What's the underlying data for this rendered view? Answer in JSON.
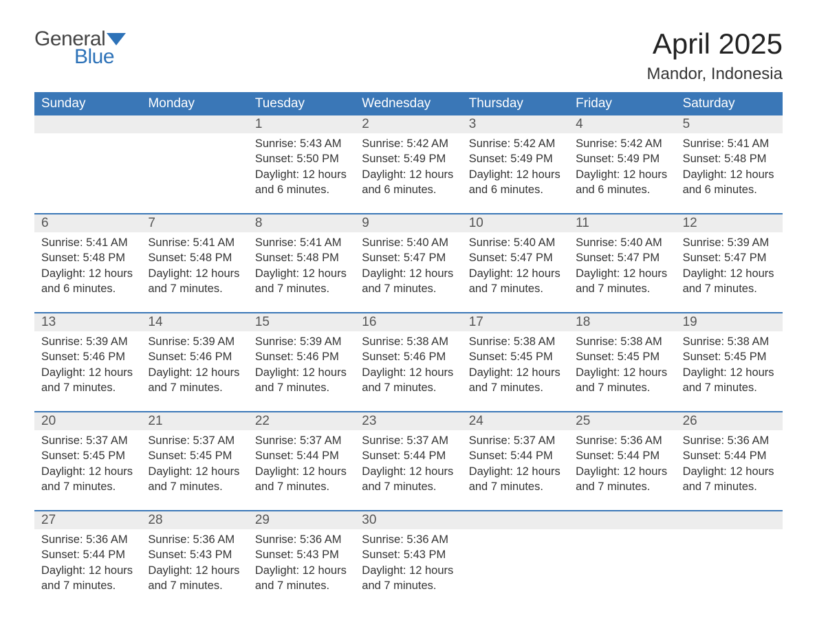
{
  "logo": {
    "text_general": "General",
    "text_blue": "Blue",
    "flag_color": "#2d72b8"
  },
  "title": "April 2025",
  "location": "Mandor, Indonesia",
  "colors": {
    "header_bg": "#3a77b7",
    "header_fg": "#ffffff",
    "daynum_bg": "#ededed",
    "body_fg": "#333333",
    "rule": "#3a77b7",
    "page_bg": "#ffffff"
  },
  "typography": {
    "title_fontsize_pt": 32,
    "location_fontsize_pt": 18,
    "header_fontsize_pt": 14,
    "body_fontsize_pt": 12
  },
  "day_names": [
    "Sunday",
    "Monday",
    "Tuesday",
    "Wednesday",
    "Thursday",
    "Friday",
    "Saturday"
  ],
  "labels": {
    "sunrise": "Sunrise:",
    "sunset": "Sunset:",
    "daylight": "Daylight:"
  },
  "weeks": [
    [
      null,
      null,
      {
        "n": "1",
        "sr": "5:43 AM",
        "ss": "5:50 PM",
        "dl": "12 hours and 6 minutes."
      },
      {
        "n": "2",
        "sr": "5:42 AM",
        "ss": "5:49 PM",
        "dl": "12 hours and 6 minutes."
      },
      {
        "n": "3",
        "sr": "5:42 AM",
        "ss": "5:49 PM",
        "dl": "12 hours and 6 minutes."
      },
      {
        "n": "4",
        "sr": "5:42 AM",
        "ss": "5:49 PM",
        "dl": "12 hours and 6 minutes."
      },
      {
        "n": "5",
        "sr": "5:41 AM",
        "ss": "5:48 PM",
        "dl": "12 hours and 6 minutes."
      }
    ],
    [
      {
        "n": "6",
        "sr": "5:41 AM",
        "ss": "5:48 PM",
        "dl": "12 hours and 6 minutes."
      },
      {
        "n": "7",
        "sr": "5:41 AM",
        "ss": "5:48 PM",
        "dl": "12 hours and 7 minutes."
      },
      {
        "n": "8",
        "sr": "5:41 AM",
        "ss": "5:48 PM",
        "dl": "12 hours and 7 minutes."
      },
      {
        "n": "9",
        "sr": "5:40 AM",
        "ss": "5:47 PM",
        "dl": "12 hours and 7 minutes."
      },
      {
        "n": "10",
        "sr": "5:40 AM",
        "ss": "5:47 PM",
        "dl": "12 hours and 7 minutes."
      },
      {
        "n": "11",
        "sr": "5:40 AM",
        "ss": "5:47 PM",
        "dl": "12 hours and 7 minutes."
      },
      {
        "n": "12",
        "sr": "5:39 AM",
        "ss": "5:47 PM",
        "dl": "12 hours and 7 minutes."
      }
    ],
    [
      {
        "n": "13",
        "sr": "5:39 AM",
        "ss": "5:46 PM",
        "dl": "12 hours and 7 minutes."
      },
      {
        "n": "14",
        "sr": "5:39 AM",
        "ss": "5:46 PM",
        "dl": "12 hours and 7 minutes."
      },
      {
        "n": "15",
        "sr": "5:39 AM",
        "ss": "5:46 PM",
        "dl": "12 hours and 7 minutes."
      },
      {
        "n": "16",
        "sr": "5:38 AM",
        "ss": "5:46 PM",
        "dl": "12 hours and 7 minutes."
      },
      {
        "n": "17",
        "sr": "5:38 AM",
        "ss": "5:45 PM",
        "dl": "12 hours and 7 minutes."
      },
      {
        "n": "18",
        "sr": "5:38 AM",
        "ss": "5:45 PM",
        "dl": "12 hours and 7 minutes."
      },
      {
        "n": "19",
        "sr": "5:38 AM",
        "ss": "5:45 PM",
        "dl": "12 hours and 7 minutes."
      }
    ],
    [
      {
        "n": "20",
        "sr": "5:37 AM",
        "ss": "5:45 PM",
        "dl": "12 hours and 7 minutes."
      },
      {
        "n": "21",
        "sr": "5:37 AM",
        "ss": "5:45 PM",
        "dl": "12 hours and 7 minutes."
      },
      {
        "n": "22",
        "sr": "5:37 AM",
        "ss": "5:44 PM",
        "dl": "12 hours and 7 minutes."
      },
      {
        "n": "23",
        "sr": "5:37 AM",
        "ss": "5:44 PM",
        "dl": "12 hours and 7 minutes."
      },
      {
        "n": "24",
        "sr": "5:37 AM",
        "ss": "5:44 PM",
        "dl": "12 hours and 7 minutes."
      },
      {
        "n": "25",
        "sr": "5:36 AM",
        "ss": "5:44 PM",
        "dl": "12 hours and 7 minutes."
      },
      {
        "n": "26",
        "sr": "5:36 AM",
        "ss": "5:44 PM",
        "dl": "12 hours and 7 minutes."
      }
    ],
    [
      {
        "n": "27",
        "sr": "5:36 AM",
        "ss": "5:44 PM",
        "dl": "12 hours and 7 minutes."
      },
      {
        "n": "28",
        "sr": "5:36 AM",
        "ss": "5:43 PM",
        "dl": "12 hours and 7 minutes."
      },
      {
        "n": "29",
        "sr": "5:36 AM",
        "ss": "5:43 PM",
        "dl": "12 hours and 7 minutes."
      },
      {
        "n": "30",
        "sr": "5:36 AM",
        "ss": "5:43 PM",
        "dl": "12 hours and 7 minutes."
      },
      null,
      null,
      null
    ]
  ]
}
